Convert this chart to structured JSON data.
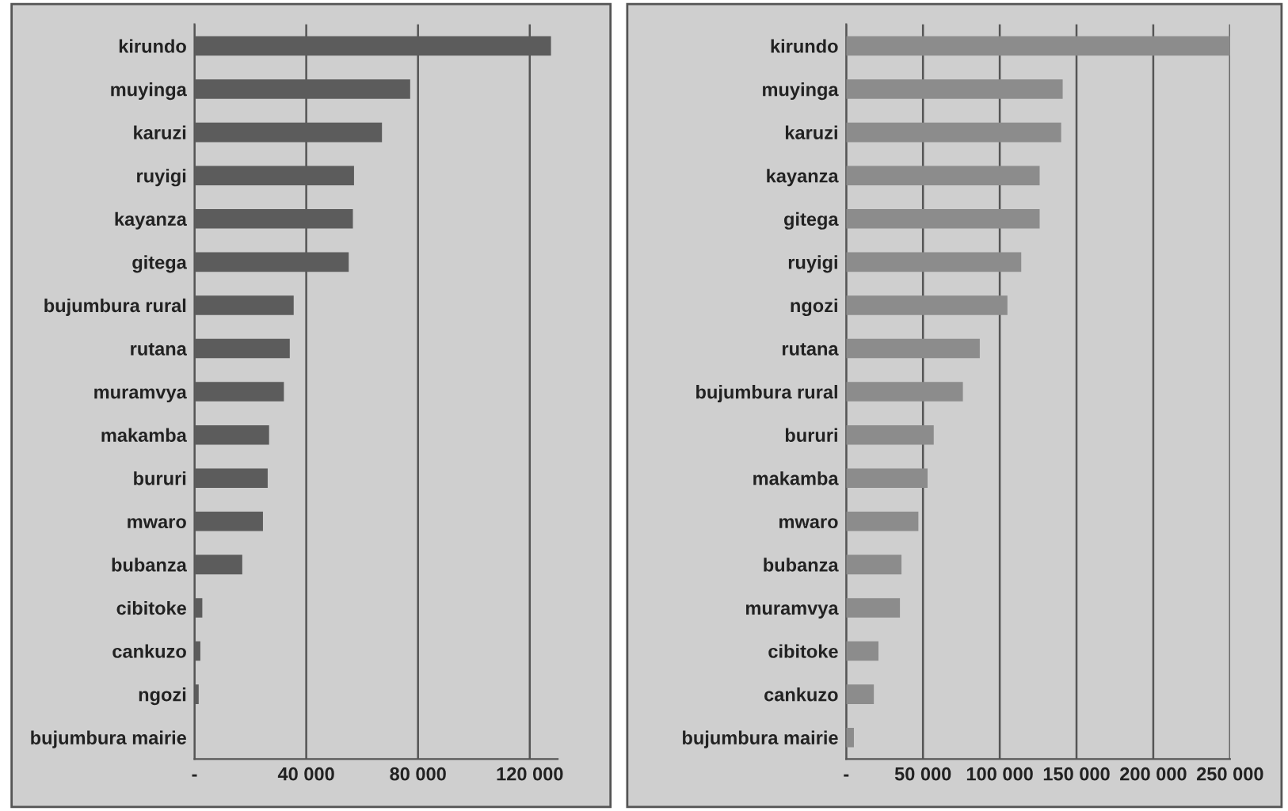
{
  "chart_data": [
    {
      "type": "bar",
      "orientation": "horizontal",
      "categories": [
        "kirundo",
        "muyinga",
        "karuzi",
        "ruyigi",
        "kayanza",
        "gitega",
        "bujumbura rural",
        "rutana",
        "muramvya",
        "makamba",
        "bururi",
        "mwaro",
        "bubanza",
        "cibitoke",
        "cankuzo",
        "ngozi",
        "bujumbura mairie"
      ],
      "values": [
        127600,
        77200,
        67100,
        57100,
        56700,
        55200,
        35500,
        34100,
        32000,
        26700,
        26200,
        24500,
        17100,
        2800,
        2100,
        1500,
        0
      ],
      "color": "#5c5c5c",
      "xlim": [
        0,
        130000
      ],
      "xticks": [
        {
          "value": 0,
          "label": "-"
        },
        {
          "value": 40000,
          "label": "40 000"
        },
        {
          "value": 80000,
          "label": "80 000"
        },
        {
          "value": 120000,
          "label": "120 000"
        }
      ],
      "grid": "x"
    },
    {
      "type": "bar",
      "orientation": "horizontal",
      "categories": [
        "kirundo",
        "muyinga",
        "karuzi",
        "kayanza",
        "gitega",
        "ruyigi",
        "ngozi",
        "rutana",
        "bujumbura rural",
        "bururi",
        "makamba",
        "mwaro",
        "bubanza",
        "muramvya",
        "cibitoke",
        "cankuzo",
        "bujumbura mairie"
      ],
      "values": [
        250000,
        141000,
        140000,
        126000,
        126000,
        114000,
        105000,
        87000,
        76000,
        57000,
        53000,
        47000,
        36000,
        35000,
        21000,
        18000,
        5000
      ],
      "color": "#8c8c8c",
      "xlim": [
        0,
        250000
      ],
      "xticks": [
        {
          "value": 0,
          "label": "-"
        },
        {
          "value": 50000,
          "label": "50 000"
        },
        {
          "value": 100000,
          "label": "100 000"
        },
        {
          "value": 150000,
          "label": "150 000"
        },
        {
          "value": 200000,
          "label": "200 000"
        },
        {
          "value": 250000,
          "label": "250 000"
        }
      ],
      "grid": "x"
    }
  ]
}
